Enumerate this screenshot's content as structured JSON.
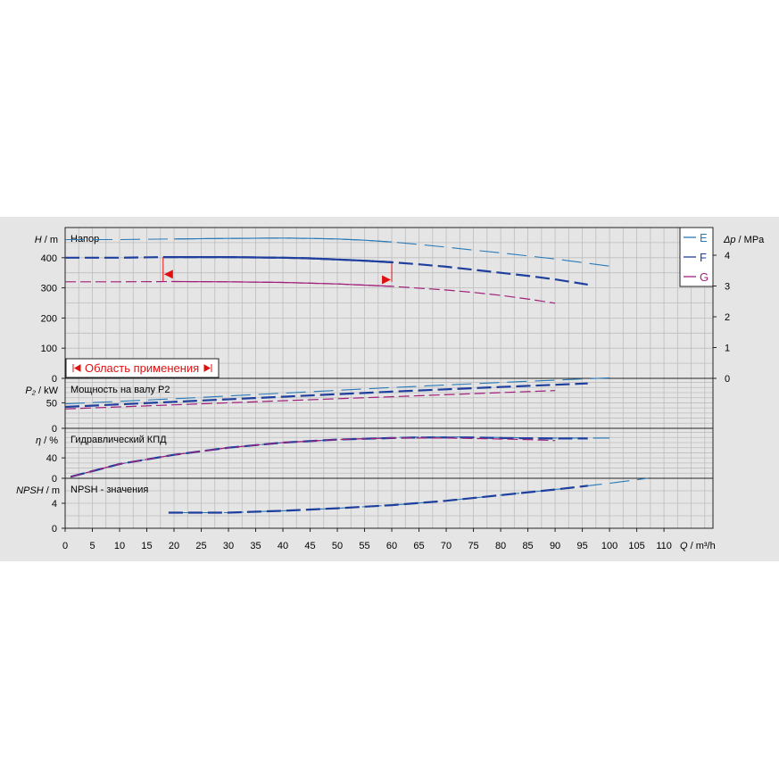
{
  "chart_data": {
    "type": "line",
    "x_axis": {
      "label_symbol": "Q",
      "label_unit": " / m³/h",
      "range": [
        0,
        119
      ],
      "ticks": [
        0,
        5,
        10,
        15,
        20,
        25,
        30,
        35,
        40,
        45,
        50,
        55,
        60,
        65,
        70,
        75,
        80,
        85,
        90,
        95,
        100,
        105,
        110
      ]
    },
    "legend": {
      "placement": "top-right",
      "entries": [
        {
          "name": "E",
          "color": "#2a7ab8"
        },
        {
          "name": "F",
          "color": "#1f3f9e"
        },
        {
          "name": "G",
          "color": "#a0207a"
        }
      ]
    },
    "panels": [
      {
        "id": "head",
        "title": "Напор",
        "y_symbol": "H",
        "y_unit": " / m",
        "y_range": [
          0,
          500
        ],
        "y_ticks": [
          0,
          100,
          200,
          300,
          400
        ],
        "y2_symbol": "Δp",
        "y2_unit": " / MPa",
        "y2_range": [
          0,
          4.9
        ],
        "y2_ticks": [
          0,
          1,
          2,
          3,
          4
        ],
        "application_range": {
          "label": "Область применения",
          "q_min": 18,
          "q_max": 60
        },
        "series": [
          {
            "name": "E",
            "x": [
              0,
              10,
              20,
              30,
              40,
              45,
              50,
              55,
              60,
              65,
              70,
              75,
              80,
              85,
              90,
              95,
              100
            ],
            "y": [
              460,
              460,
              462,
              464,
              465,
              464,
              462,
              458,
              452,
              444,
              435,
              425,
              416,
              406,
              396,
              384,
              372
            ]
          },
          {
            "name": "F",
            "x": [
              0,
              10,
              18,
              25,
              30,
              35,
              40,
              45,
              50,
              55,
              60,
              65,
              70,
              75,
              80,
              85,
              90,
              96
            ],
            "y": [
              400,
              400,
              402,
              402,
              402,
              401,
              400,
              398,
              394,
              390,
              385,
              378,
              370,
              360,
              350,
              340,
              328,
              311
            ]
          },
          {
            "name": "G",
            "x": [
              0,
              10,
              20,
              30,
              40,
              50,
              60,
              70,
              75,
              80,
              85,
              90
            ],
            "y": [
              320,
              320,
              321,
              320,
              318,
              313,
              305,
              293,
              285,
              275,
              263,
              249
            ]
          }
        ]
      },
      {
        "id": "power",
        "title": "Мощность на валу P2",
        "y_symbol": "P₂",
        "y_unit": " / kW",
        "y_range": [
          0,
          98
        ],
        "y_ticks": [
          0,
          50
        ],
        "series": [
          {
            "name": "E",
            "x": [
              0,
              20,
              40,
              60,
              80,
              100
            ],
            "y": [
              48,
              58,
              69,
              80,
              90,
              99
            ]
          },
          {
            "name": "F",
            "x": [
              0,
              20,
              40,
              60,
              80,
              96
            ],
            "y": [
              42,
              52,
              62,
              72,
              81,
              88
            ]
          },
          {
            "name": "G",
            "x": [
              0,
              20,
              40,
              60,
              80,
              90
            ],
            "y": [
              38,
              46,
              54,
              62,
              70,
              74
            ]
          }
        ]
      },
      {
        "id": "efficiency",
        "title": "Гидравлический КПД",
        "y_symbol": "η",
        "y_unit": " / %",
        "y_range": [
          0,
          98
        ],
        "y_ticks": [
          0,
          40
        ],
        "series": [
          {
            "name": "E",
            "x": [
              1,
              5,
              10,
              20,
              30,
              40,
              50,
              60,
              65,
              70,
              75,
              80,
              90,
              100
            ],
            "y": [
              3,
              14,
              28,
              46,
              60,
              70,
              76,
              80,
              81,
              81,
              81,
              80,
              79,
              79
            ]
          },
          {
            "name": "F",
            "x": [
              1,
              5,
              10,
              20,
              30,
              40,
              50,
              60,
              65,
              70,
              75,
              80,
              90,
              96
            ],
            "y": [
              3,
              14,
              28,
              46,
              60,
              70,
              76,
              79,
              80,
              80,
              80,
              79,
              78,
              78
            ]
          },
          {
            "name": "G",
            "x": [
              1,
              5,
              10,
              20,
              30,
              40,
              50,
              60,
              70,
              75,
              80,
              85,
              90
            ],
            "y": [
              3,
              14,
              28,
              46,
              60,
              70,
              76,
              79,
              79,
              78,
              77,
              76,
              74
            ]
          }
        ]
      },
      {
        "id": "npsh",
        "title": "NPSH - значения",
        "y_symbol": "NPSH",
        "y_unit": " / m",
        "y_range": [
          0,
          8
        ],
        "y_ticks": [
          0,
          4
        ],
        "series": [
          {
            "name": "E",
            "x": [
              19,
              30,
              40,
              50,
              60,
              70,
              80,
              90,
              100,
              107
            ],
            "y": [
              2.5,
              2.5,
              2.8,
              3.2,
              3.7,
              4.4,
              5.3,
              6.2,
              7.2,
              8.0
            ]
          },
          {
            "name": "F",
            "x": [
              19,
              30,
              40,
              50,
              60,
              70,
              80,
              90,
              96
            ],
            "y": [
              2.5,
              2.5,
              2.8,
              3.2,
              3.7,
              4.4,
              5.3,
              6.2,
              6.8
            ]
          }
        ]
      }
    ]
  }
}
